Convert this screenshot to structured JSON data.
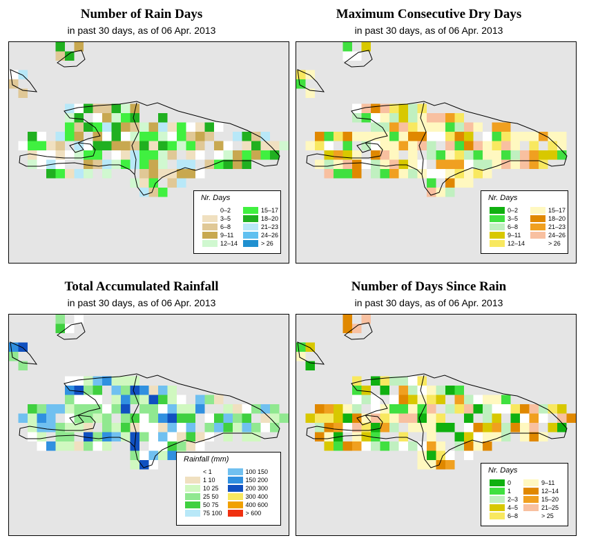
{
  "panels": [
    {
      "id": "rain-days",
      "title": "Number of Rain Days",
      "subtitle": "in past 30 days, as of  06 Apr. 2013",
      "legend": {
        "title": "Nr. Days",
        "items": [
          {
            "label": "0–2",
            "color": "#ffffff"
          },
          {
            "label": "3–5",
            "color": "#f0e0c0"
          },
          {
            "label": "6–8",
            "color": "#e0c896"
          },
          {
            "label": "9–11",
            "color": "#c8a850"
          },
          {
            "label": "12–14",
            "color": "#d0f8d0"
          },
          {
            "label": "15–17",
            "color": "#40f040"
          },
          {
            "label": "18–20",
            "color": "#20b020"
          },
          {
            "label": "21–23",
            "color": "#b8e8f8"
          },
          {
            "label": "24–26",
            "color": "#60c0f0"
          },
          {
            "label": "> 26",
            "color": "#2090d0"
          }
        ]
      }
    },
    {
      "id": "dry-days",
      "title": "Maximum Consecutive Dry Days",
      "subtitle": "in past 30 days, as of  06 Apr. 2013",
      "legend": {
        "title": "Nr. Days",
        "items": [
          {
            "label": "0–2",
            "color": "#10b010"
          },
          {
            "label": "3–5",
            "color": "#40e040"
          },
          {
            "label": "6–8",
            "color": "#c0f0c0"
          },
          {
            "label": "9–11",
            "color": "#d8c800"
          },
          {
            "label": "12–14",
            "color": "#f8e860"
          },
          {
            "label": "15–17",
            "color": "#fff8c0"
          },
          {
            "label": "18–20",
            "color": "#e08800"
          },
          {
            "label": "21–23",
            "color": "#f0a020"
          },
          {
            "label": "24–26",
            "color": "#f8c0a0"
          },
          {
            "label": "> 26",
            "color": "#ffffff"
          }
        ]
      }
    },
    {
      "id": "rainfall",
      "title": "Total Accumulated Rainfall",
      "subtitle": "in past 30 days, as of  06 Apr. 2013",
      "legend": {
        "title": "Rainfall (mm)",
        "items": [
          {
            "label": "< 1",
            "color": "#ffffff"
          },
          {
            "label": "1    10",
            "color": "#f0e0c0"
          },
          {
            "label": "10    25",
            "color": "#d0f8c0"
          },
          {
            "label": "25    50",
            "color": "#90e890"
          },
          {
            "label": "50    75",
            "color": "#40d040"
          },
          {
            "label": "75    100",
            "color": "#b8e8f8"
          },
          {
            "label": "100  150",
            "color": "#70c0f0"
          },
          {
            "label": "150  200",
            "color": "#3090e0"
          },
          {
            "label": "200  300",
            "color": "#1050c0"
          },
          {
            "label": "300  400",
            "color": "#f8e860"
          },
          {
            "label": "400  600",
            "color": "#f0a000"
          },
          {
            "label": "> 600",
            "color": "#f03010"
          }
        ]
      }
    },
    {
      "id": "days-since-rain",
      "title": "Number of Days Since Rain",
      "subtitle": "in past 30 days, as of  06 Apr. 2013",
      "legend": {
        "title": "Nr. Days",
        "items": [
          {
            "label": "0",
            "color": "#10b010"
          },
          {
            "label": "1",
            "color": "#40e040"
          },
          {
            "label": "2–3",
            "color": "#c0f0c0"
          },
          {
            "label": "4–5",
            "color": "#d8c800"
          },
          {
            "label": "6–8",
            "color": "#f8e860"
          },
          {
            "label": "9–11",
            "color": "#fff8c0"
          },
          {
            "label": "12–14",
            "color": "#e08800"
          },
          {
            "label": "15–20",
            "color": "#f0a020"
          },
          {
            "label": "21–25",
            "color": "#f8c0a0"
          },
          {
            "label": "> 25",
            "color": "#ffffff"
          }
        ]
      }
    }
  ]
}
